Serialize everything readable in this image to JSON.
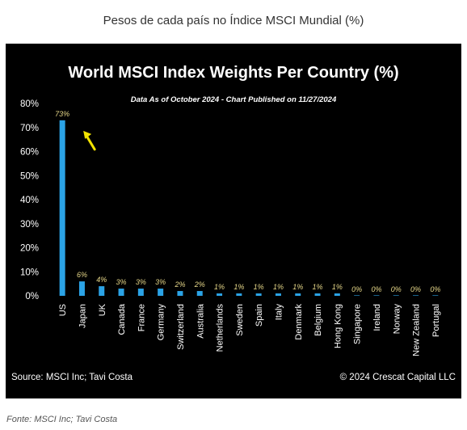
{
  "page": {
    "caption": "Pesos de cada país no Índice MSCI Mundial (%)",
    "source_note": "Fonte: MSCI Inc; Tavi Costa"
  },
  "chart_data": {
    "type": "bar",
    "title": "World MSCI Index Weights Per Country (%)",
    "subtitle": "Data As of October 2024 - Chart Published on 11/27/2024",
    "xlabel": "",
    "ylabel": "",
    "ylim": [
      0,
      80
    ],
    "yticks": [
      0,
      10,
      20,
      30,
      40,
      50,
      60,
      70,
      80
    ],
    "ytick_labels": [
      "0%",
      "10%",
      "20%",
      "30%",
      "40%",
      "50%",
      "60%",
      "70%",
      "80%"
    ],
    "categories": [
      "US",
      "Japan",
      "UK",
      "Canada",
      "France",
      "Germany",
      "Switzerland",
      "Australia",
      "Netherlands",
      "Sweden",
      "Spain",
      "Italy",
      "Denmark",
      "Belgium",
      "Hong Kong",
      "Singapore",
      "Ireland",
      "Norway",
      "New Zealand",
      "Portugal"
    ],
    "values": [
      73,
      6,
      4,
      3,
      3,
      3,
      2,
      2,
      1,
      1,
      1,
      1,
      1,
      1,
      1,
      0,
      0,
      0,
      0,
      0
    ],
    "data_labels": [
      "73%",
      "6%",
      "4%",
      "3%",
      "3%",
      "3%",
      "2%",
      "2%",
      "1%",
      "1%",
      "1%",
      "1%",
      "1%",
      "1%",
      "1%",
      "0%",
      "0%",
      "0%",
      "0%",
      "0%"
    ],
    "grid": false,
    "legend": "none",
    "footer_left": "Source: MSCI Inc; Tavi Costa",
    "footer_right": "© 2024 Crescat Capital LLC",
    "annotation": "arrow-pointing-to-us-bar"
  },
  "colors": {
    "background": "#000000",
    "bar": "#2ba3e6",
    "data_label": "#e8d98a",
    "arrow": "#f2e300",
    "text": "#ffffff"
  }
}
